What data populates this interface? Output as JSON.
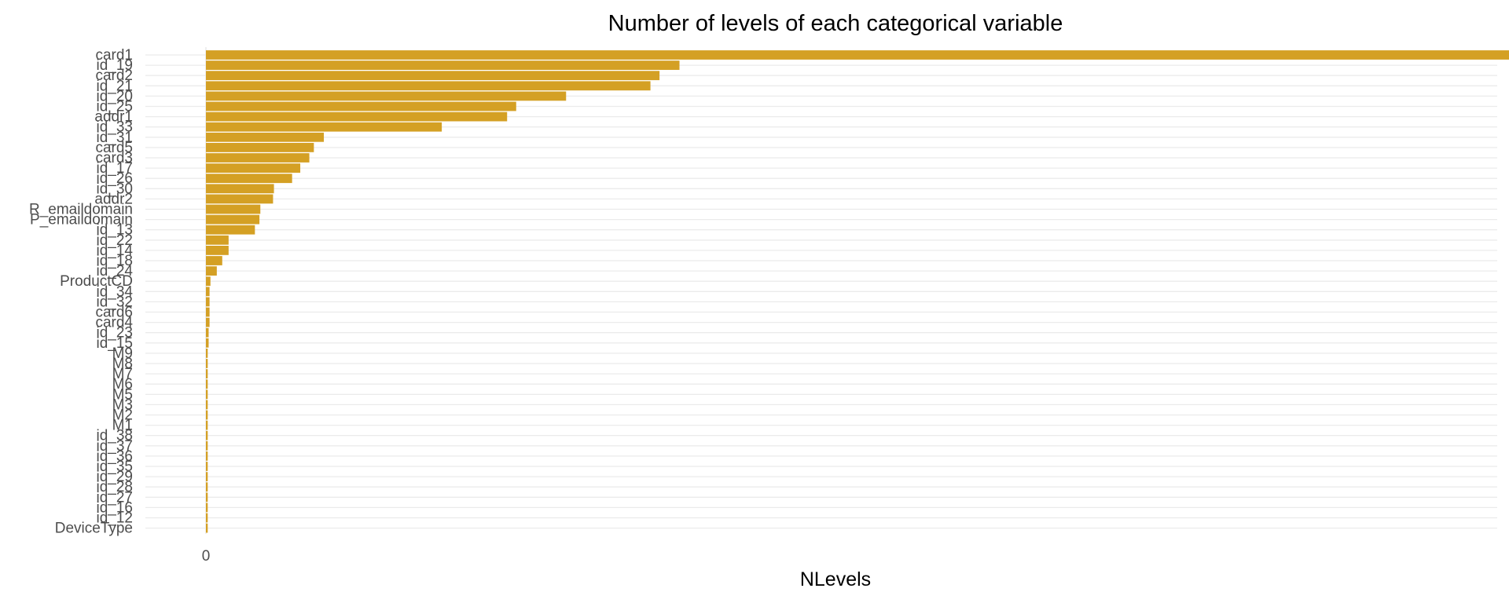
{
  "chart_data": {
    "type": "bar",
    "orientation": "horizontal",
    "title": "Number of levels of each categorical variable",
    "xlabel": "NLevels",
    "ylabel": "",
    "xlim": [
      -600,
      14300
    ],
    "xticks": [
      0,
      5000,
      10000
    ],
    "grid": true,
    "legend": "none",
    "bar_color": "#D4A024",
    "categories": [
      "card1",
      "id_19",
      "card2",
      "id_21",
      "id_20",
      "id_25",
      "addr1",
      "id_33",
      "id_31",
      "card5",
      "card3",
      "id_17",
      "id_26",
      "id_30",
      "addr2",
      "R_emaildomain",
      "P_emaildomain",
      "id_13",
      "id_22",
      "id_14",
      "id_18",
      "id_24",
      "ProductCD",
      "id_34",
      "id_32",
      "card6",
      "card4",
      "id_23",
      "id_15",
      "M9",
      "M8",
      "M7",
      "M6",
      "M5",
      "M3",
      "M2",
      "M1",
      "id_38",
      "id_37",
      "id_36",
      "id_35",
      "id_29",
      "id_28",
      "id_27",
      "id_16",
      "id_12",
      "DeviceType"
    ],
    "values": [
      13553,
      522,
      500,
      490,
      397,
      342,
      332,
      260,
      130,
      119,
      114,
      104,
      95,
      75,
      74,
      60,
      59,
      54,
      25,
      25,
      18,
      12,
      5,
      4,
      4,
      4,
      4,
      3,
      3,
      2,
      2,
      2,
      2,
      2,
      2,
      2,
      2,
      2,
      2,
      2,
      2,
      2,
      2,
      2,
      2,
      2,
      2
    ]
  }
}
